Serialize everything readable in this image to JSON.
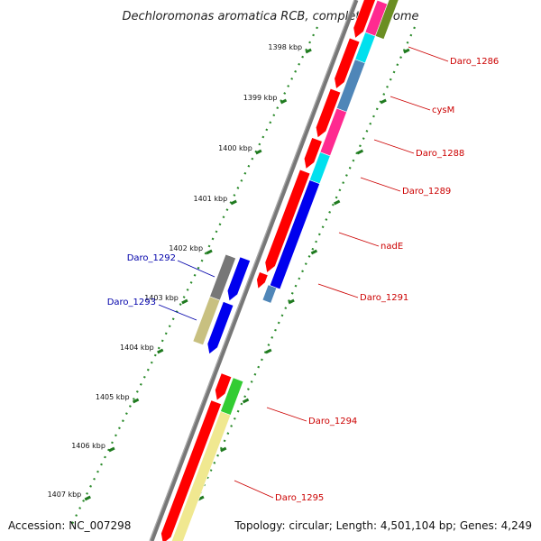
{
  "title": "Dechloromonas aromatica RCB, complete genome",
  "accession": "Accession: NC_007298",
  "topology": "Topology: circular; Length: 4,501,104 bp; Genes: 4,249",
  "ticks": [
    "1398 kbp",
    "1399 kbp",
    "1400 kbp",
    "1401 kbp",
    "1402 kbp",
    "1403 kbp",
    "1404 kbp",
    "1405 kbp",
    "1406 kbp",
    "1407 kbp"
  ],
  "gene_labels": [
    {
      "text": "Daro_1286",
      "color": "#cc0000"
    },
    {
      "text": "cysM",
      "color": "#cc0000"
    },
    {
      "text": "Daro_1288",
      "color": "#cc0000"
    },
    {
      "text": "Daro_1289",
      "color": "#cc0000"
    },
    {
      "text": "nadE",
      "color": "#cc0000"
    },
    {
      "text": "Daro_1291",
      "color": "#cc0000"
    },
    {
      "text": "Daro_1292",
      "color": "#0000aa"
    },
    {
      "text": "Daro_1293",
      "color": "#0000aa"
    },
    {
      "text": "Daro_1294",
      "color": "#cc0000"
    },
    {
      "text": "Daro_1295",
      "color": "#cc0000"
    }
  ],
  "colors": {
    "backbone": "#888888",
    "tick_dots": "#2a8a2a",
    "cds_red": "#ff0000",
    "cds_blue": "#0000ee",
    "cyan": "#00e0ee",
    "steelblue": "#4f86b8",
    "magenta": "#ff2a90",
    "olive": "#6b8e23",
    "khaki": "#c8c080",
    "gray": "#777777",
    "green": "#33cc33",
    "pale_yellow": "#f0e890"
  }
}
